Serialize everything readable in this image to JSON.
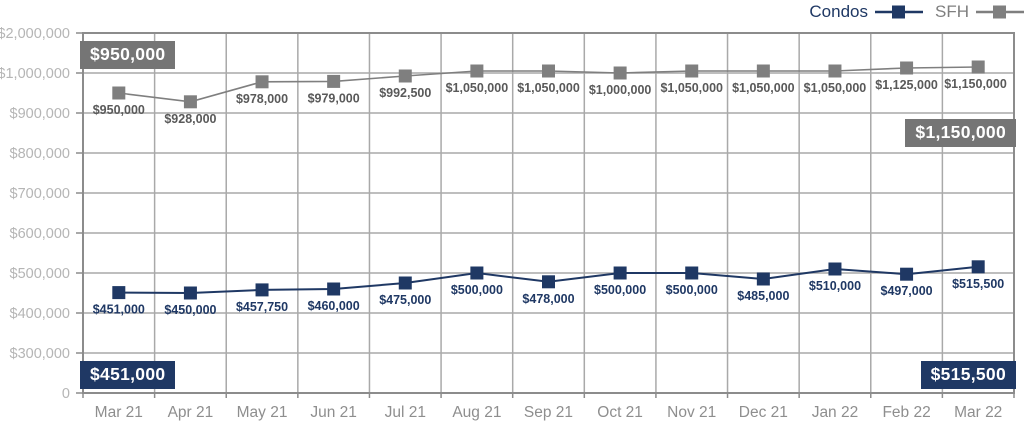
{
  "legend": {
    "items": [
      {
        "label": "Condos",
        "color": "#1f3864"
      },
      {
        "label": "SFH",
        "color": "#7f7f7f"
      }
    ]
  },
  "chart_data": {
    "type": "line",
    "title": "",
    "categories": [
      "Mar 21",
      "Apr 21",
      "May 21",
      "Jun 21",
      "Jul 21",
      "Aug 21",
      "Sep 21",
      "Oct 21",
      "Nov 21",
      "Dec 21",
      "Jan 22",
      "Feb 22",
      "Mar 22"
    ],
    "series": [
      {
        "name": "Condos",
        "color": "#1f3864",
        "label_color": "#1f3864",
        "values": [
          451000,
          450000,
          457750,
          460000,
          475000,
          500000,
          478000,
          500000,
          500000,
          485000,
          510000,
          497000,
          515500
        ],
        "labels": [
          "$451,000",
          "$450,000",
          "$457,750",
          "$460,000",
          "$475,000",
          "$500,000",
          "$478,000",
          "$500,000",
          "$500,000",
          "$485,000",
          "$510,000",
          "$497,000",
          "$515,500"
        ]
      },
      {
        "name": "SFH",
        "color": "#7f7f7f",
        "label_color": "#595959",
        "values": [
          950000,
          928000,
          978000,
          979000,
          992500,
          1050000,
          1050000,
          1000000,
          1050000,
          1050000,
          1050000,
          1125000,
          1150000
        ],
        "labels": [
          "$950,000",
          "$928,000",
          "$978,000",
          "$979,000",
          "$992,500",
          "$1,050,000",
          "$1,050,000",
          "$1,000,000",
          "$1,050,000",
          "$1,050,000",
          "$1,050,000",
          "$1,125,000",
          "$1,150,000"
        ]
      }
    ],
    "y_axis": {
      "tick_values": [
        0,
        300000,
        400000,
        500000,
        600000,
        700000,
        800000,
        900000,
        1000000,
        2000000
      ],
      "tick_labels": [
        "0",
        "$300,000",
        "$400,000",
        "$500,000",
        "$600,000",
        "$700,000",
        "$800,000",
        "$900,000",
        "$1,000,000",
        "$2,000,000"
      ]
    },
    "grid": true,
    "legend_position": "top-right",
    "callouts": [
      {
        "text": "$950,000",
        "series": "SFH",
        "corner": "top-left",
        "bg": "#757575",
        "fg": "#ffffff"
      },
      {
        "text": "$1,150,000",
        "series": "SFH",
        "corner": "mid-right",
        "bg": "#757575",
        "fg": "#ffffff"
      },
      {
        "text": "$451,000",
        "series": "Condos",
        "corner": "bottom-left",
        "bg": "#1f3864",
        "fg": "#ffffff"
      },
      {
        "text": "$515,500",
        "series": "Condos",
        "corner": "bottom-right",
        "bg": "#1f3864",
        "fg": "#ffffff"
      }
    ],
    "colors": {
      "gridline": "#a9a9a9",
      "border": "#8c8c8c",
      "y_tick_label": "#b5b5b5",
      "x_tick_label": "#8e8e8e"
    }
  }
}
